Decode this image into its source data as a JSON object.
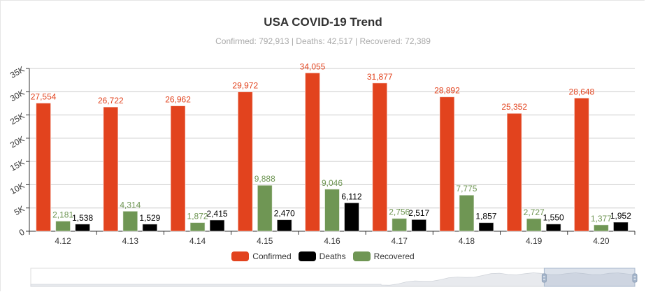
{
  "chart_data": {
    "type": "bar",
    "title": "USA COVID-19 Trend",
    "subtitle": "Confirmed: 792,913 | Deaths: 42,517 | Recovered: 72,389",
    "categories": [
      "4.12",
      "4.13",
      "4.14",
      "4.15",
      "4.16",
      "4.17",
      "4.18",
      "4.19",
      "4.20"
    ],
    "series": [
      {
        "name": "Confirmed",
        "color": "#e2431e",
        "labelColor": "#e2431e",
        "values": [
          27554,
          26722,
          26962,
          29972,
          34055,
          31877,
          28892,
          25352,
          28648
        ],
        "labels": [
          "27,554",
          "26,722",
          "26,962",
          "29,972",
          "34,055",
          "31,877",
          "28,892",
          "25,352",
          "28,648"
        ]
      },
      {
        "name": "Recovered",
        "color": "#6f9654",
        "labelColor": "#6f9654",
        "values": [
          2181,
          4314,
          1872,
          9888,
          9046,
          2756,
          7775,
          2727,
          1377
        ],
        "labels": [
          "2,181",
          "4,314",
          "1,872",
          "9,888",
          "9,046",
          "2,756",
          "7,775",
          "2,727",
          "1,377"
        ]
      },
      {
        "name": "Deaths",
        "color": "#000000",
        "labelColor": "#000000",
        "values": [
          1538,
          1529,
          2415,
          2470,
          6112,
          2517,
          1857,
          1550,
          1952
        ],
        "labels": [
          "1,538",
          "1,529",
          "2,415",
          "2,470",
          "6,112",
          "2,517",
          "1,857",
          "1,550",
          "1,952"
        ]
      }
    ],
    "legend": [
      {
        "name": "Confirmed",
        "color": "#e2431e"
      },
      {
        "name": "Deaths",
        "color": "#000000"
      },
      {
        "name": "Recovered",
        "color": "#6f9654"
      }
    ],
    "legend_position": "bottom",
    "ylim": [
      0,
      35000
    ],
    "yticks": [
      0,
      5000,
      10000,
      15000,
      20000,
      25000,
      30000,
      35000
    ],
    "ytick_labels": [
      "0",
      "5K",
      "10K",
      "15K",
      "20K",
      "25K",
      "30K",
      "35K"
    ],
    "grid": true,
    "xlabel": "",
    "ylabel": "",
    "datazoom": {
      "start_percent": 85,
      "end_percent": 100
    }
  }
}
